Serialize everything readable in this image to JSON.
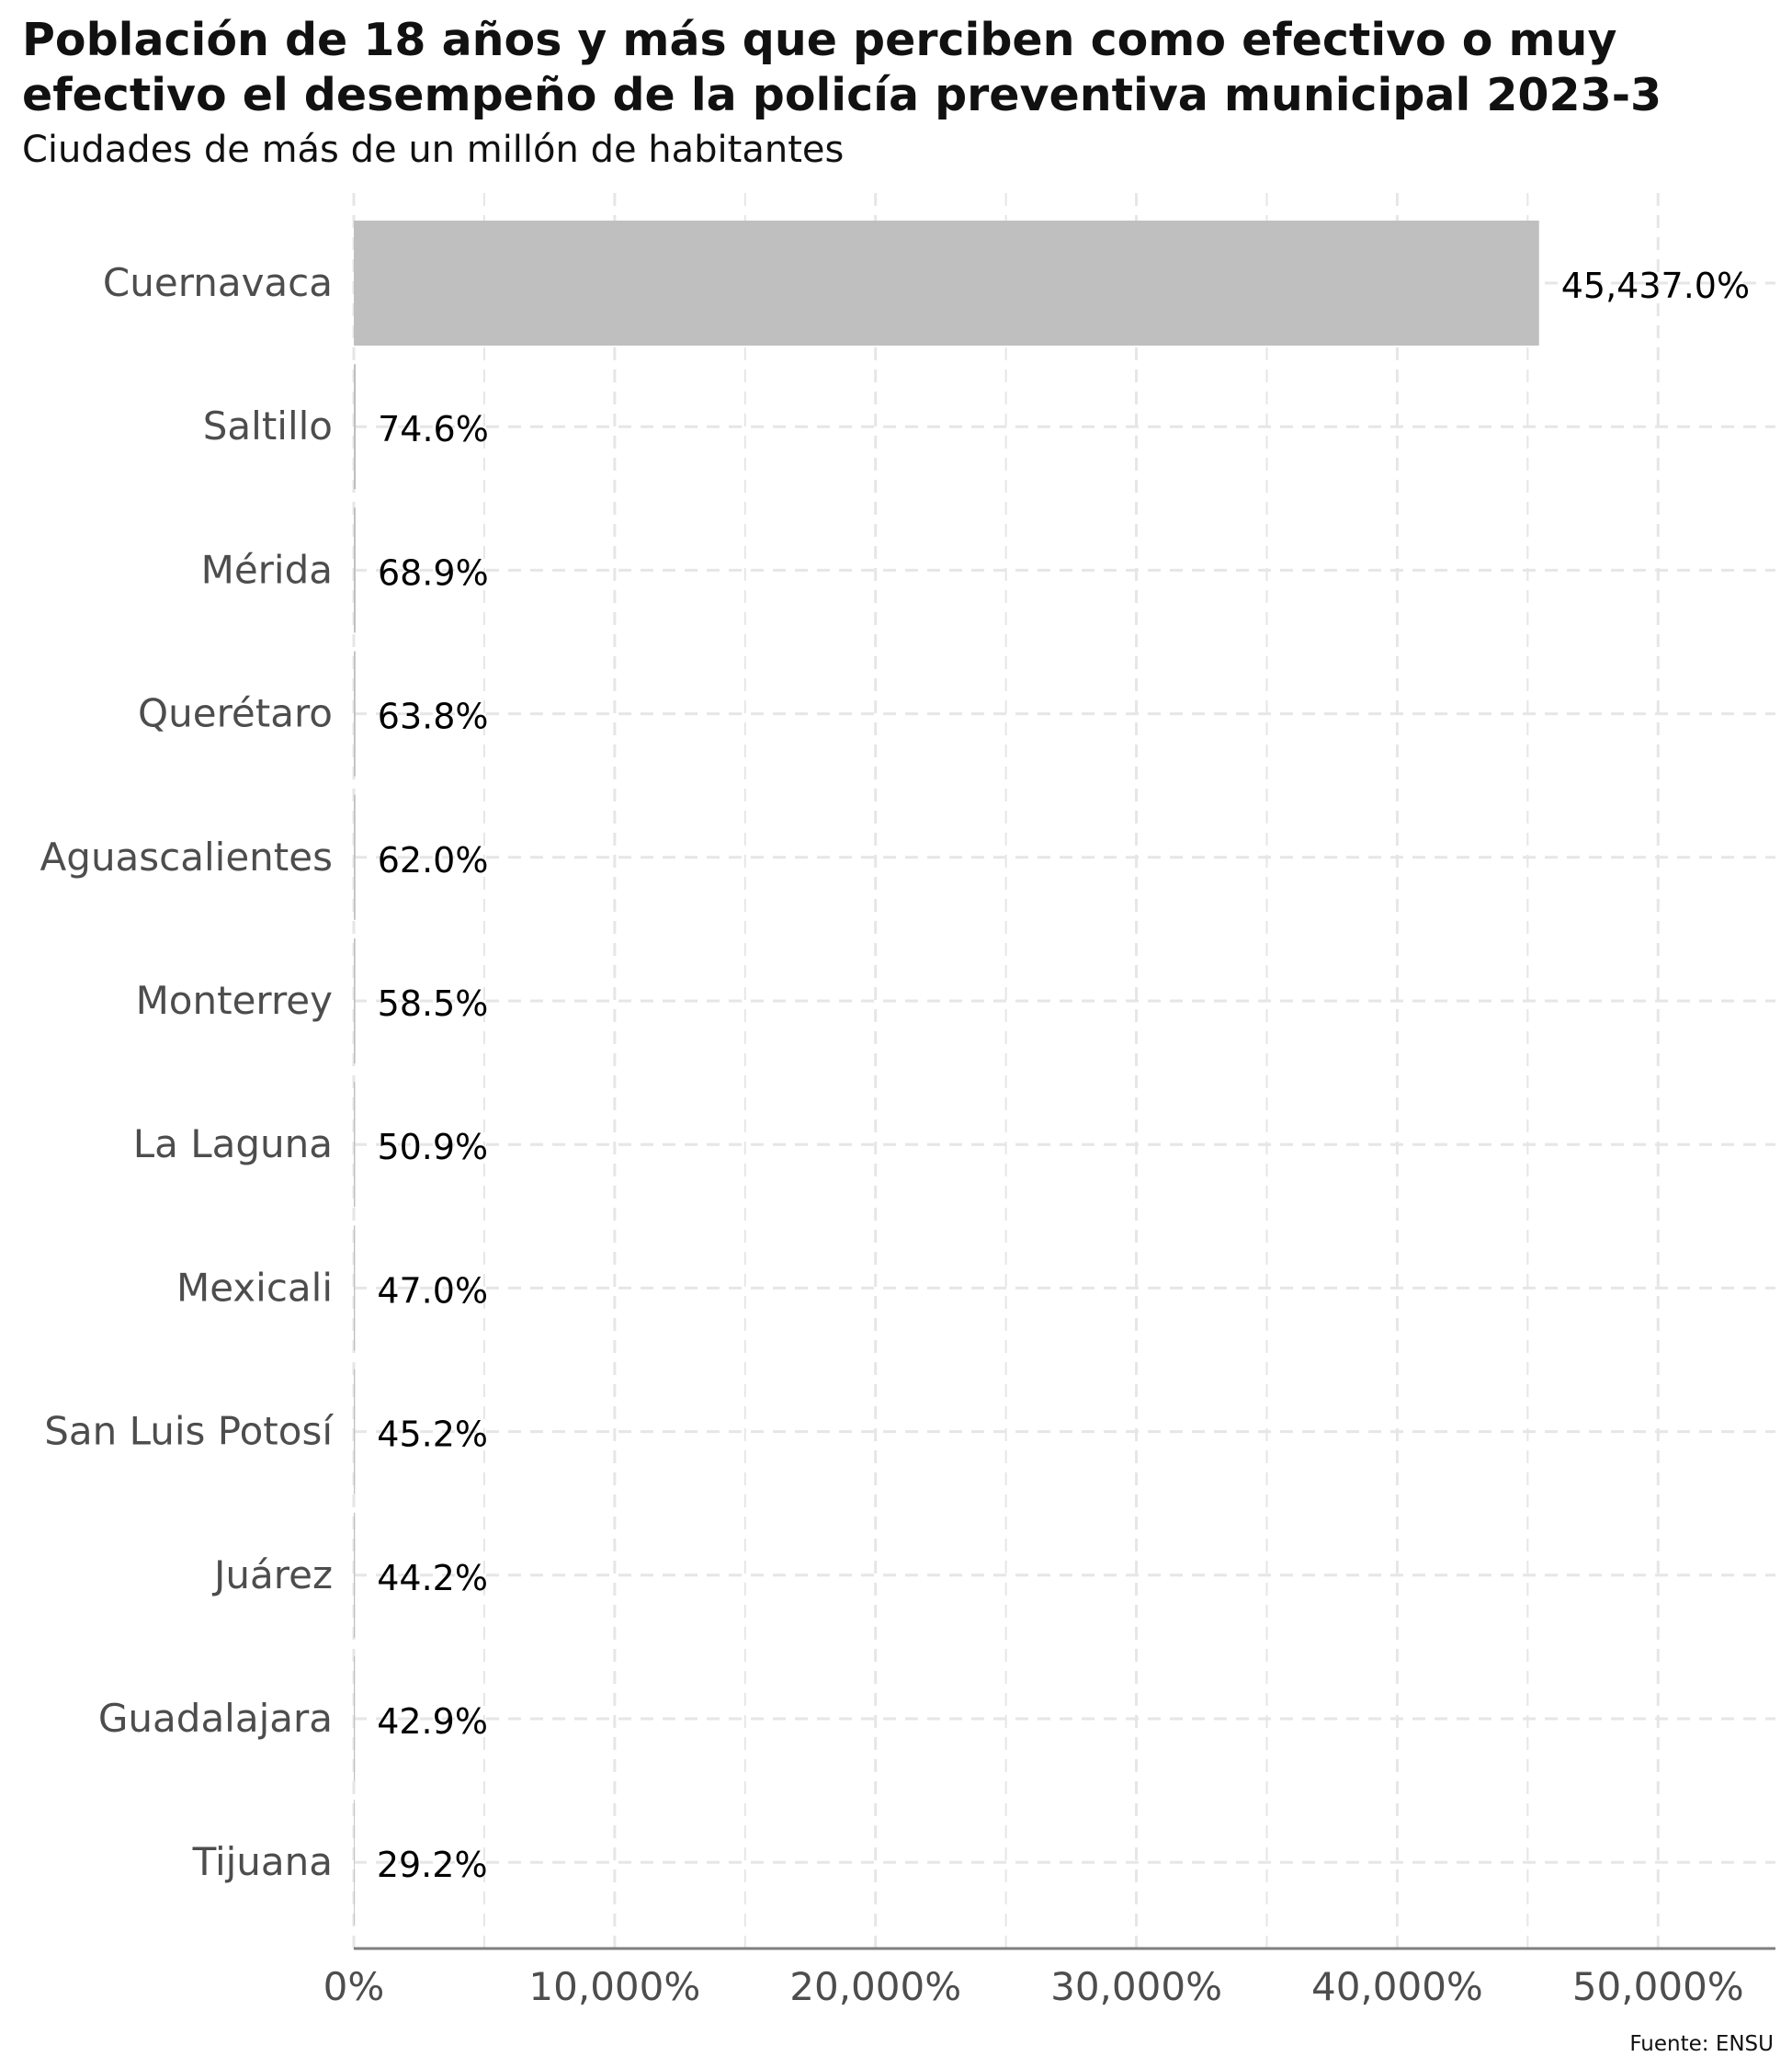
{
  "chart_data": {
    "type": "bar",
    "orientation": "horizontal",
    "title_lines": [
      "Población de 18 años y más que perciben como efectivo o muy",
      "efectivo el desempeño de la policía preventiva municipal 2023-3"
    ],
    "subtitle": "Ciudades de más de un millón de habitantes",
    "categories": [
      "Cuernavaca",
      "Saltillo",
      "Mérida",
      "Querétaro",
      "Aguascalientes",
      "Monterrey",
      "La Laguna",
      "Mexicali",
      "San Luis Potosí",
      "Juárez",
      "Guadalajara",
      "Tijuana"
    ],
    "values": [
      45437.0,
      74.6,
      68.9,
      63.8,
      62.0,
      58.5,
      50.9,
      47.0,
      45.2,
      44.2,
      42.9,
      29.2
    ],
    "value_labels": [
      "45,437.0%",
      "74.6%",
      "68.9%",
      "63.8%",
      "62.0%",
      "58.5%",
      "50.9%",
      "47.0%",
      "45.2%",
      "44.2%",
      "42.9%",
      "29.2%"
    ],
    "xlim": [
      0,
      54500
    ],
    "x_ticks": [
      0,
      10000,
      20000,
      30000,
      40000,
      50000
    ],
    "x_tick_labels": [
      "0%",
      "10,000%",
      "20,000%",
      "30,000%",
      "40,000%",
      "50,000%"
    ],
    "xlabel": "",
    "ylabel": "",
    "grid": "dashed",
    "bar_color": "#bfbfbf",
    "grid_color": "#e6e6e6",
    "axis_color": "#7f7f7f"
  },
  "source": "Fuente: ENSU"
}
